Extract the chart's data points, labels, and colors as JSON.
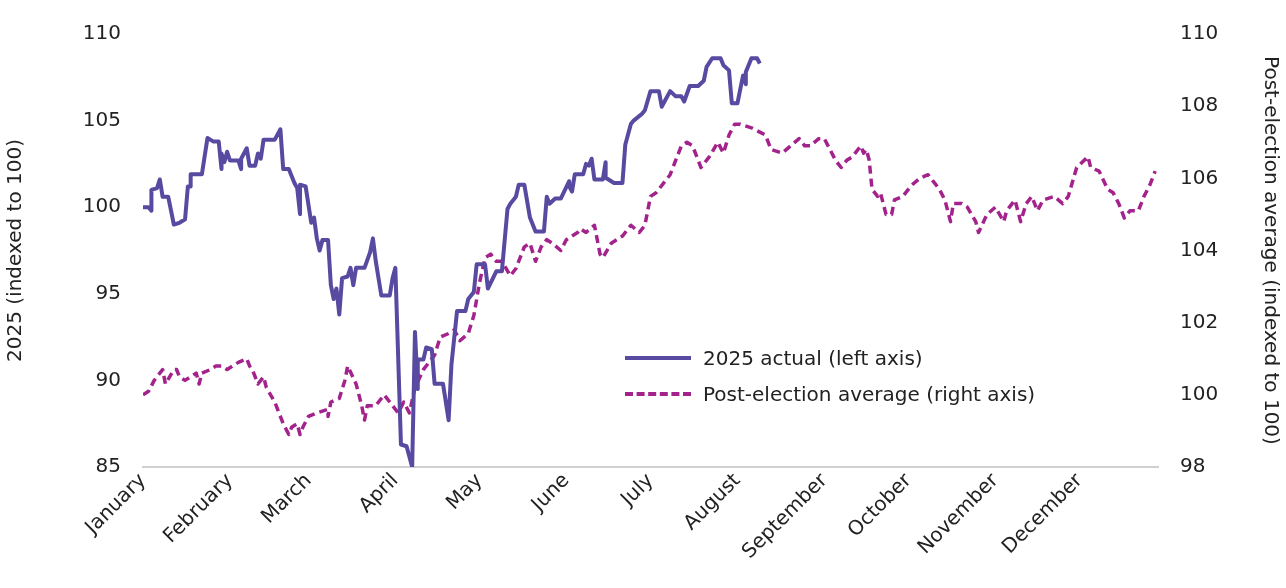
{
  "chart_data": {
    "type": "line",
    "ylabel": "2025 (indexed to 100)",
    "y2label": "Post-election average (indexed to 100)",
    "xlim": [
      "--01-01",
      "--12-29"
    ],
    "xticks": [
      {
        "value": "--01-01",
        "label": "January"
      },
      {
        "value": "--02-01",
        "label": "February"
      },
      {
        "value": "--03-01",
        "label": "March"
      },
      {
        "value": "--04-01",
        "label": "April"
      },
      {
        "value": "--05-01",
        "label": "May"
      },
      {
        "value": "--06-01",
        "label": "June"
      },
      {
        "value": "--07-01",
        "label": "July"
      },
      {
        "value": "--08-01",
        "label": "August"
      },
      {
        "value": "--09-01",
        "label": "September"
      },
      {
        "value": "--10-01",
        "label": "October"
      },
      {
        "value": "--11-01",
        "label": "November"
      },
      {
        "value": "--12-01",
        "label": "December"
      }
    ],
    "ylim": [
      85,
      110
    ],
    "yticks": [
      85,
      90,
      95,
      100,
      105,
      110
    ],
    "y2lim": [
      98,
      110
    ],
    "y2ticks": [
      98,
      100,
      102,
      104,
      106,
      108,
      110
    ],
    "grid": false,
    "legend": "bottom right",
    "marker": "none",
    "series": [
      {
        "name": "2025 actual (left axis)",
        "color": "#574aa0",
        "line_style": "solid",
        "axis": "y",
        "x": [
          "--01-01",
          "--01-03",
          "--01-04",
          "--01-04",
          "--01-06",
          "--01-07",
          "--01-08",
          "--01-10",
          "--01-12",
          "--01-14",
          "--01-16",
          "--01-17",
          "--01-18",
          "--01-18",
          "--01-22",
          "--01-24",
          "--01-26",
          "--01-28",
          "--01-29",
          "--01-29",
          "--01-30",
          "--01-31",
          "--02-01",
          "--02-04",
          "--02-05",
          "--02-05",
          "--02-07",
          "--02-08",
          "--02-10",
          "--02-11",
          "--02-12",
          "--02-13",
          "--02-17",
          "--02-19",
          "--02-20",
          "--02-22",
          "--02-24",
          "--02-25",
          "--02-26",
          "--02-26",
          "--02-28",
          "--03-02",
          "--03-03",
          "--03-04",
          "--03-05",
          "--03-06",
          "--03-08",
          "--03-09",
          "--03-10",
          "--03-11",
          "--03-12",
          "--03-13",
          "--03-15",
          "--03-16",
          "--03-17",
          "--03-18",
          "--03-21",
          "--03-23",
          "--03-24",
          "--03-25",
          "--03-27",
          "--03-30",
          "--03-31",
          "--04-01",
          "--04-03",
          "--04-05",
          "--04-07",
          "--04-08",
          "--04-09",
          "--04-09",
          "--04-11",
          "--04-12",
          "--04-14",
          "--04-15",
          "--04-18",
          "--04-20",
          "--04-21",
          "--04-23",
          "--04-26",
          "--04-27",
          "--04-29",
          "--04-30",
          "--05-03",
          "--05-04",
          "--05-07",
          "--05-09",
          "--05-11",
          "--05-12",
          "--05-14",
          "--05-15",
          "--05-17",
          "--05-19",
          "--05-21",
          "--05-24",
          "--05-25",
          "--05-26",
          "--05-28",
          "--05-30",
          "--06-02",
          "--06-02",
          "--06-03",
          "--06-04",
          "--06-07",
          "--06-08",
          "--06-09",
          "--06-10",
          "--06-11",
          "--06-14",
          "--06-15",
          "--06-15",
          "--06-18",
          "--06-21",
          "--06-22",
          "--06-24",
          "--06-25",
          "--06-28",
          "--06-29",
          "--07-01",
          "--07-04",
          "--07-05",
          "--07-08",
          "--07-10",
          "--07-12",
          "--07-13",
          "--07-15",
          "--07-18",
          "--07-20",
          "--07-21",
          "--07-23",
          "--07-26",
          "--07-27",
          "--07-29",
          "--07-30",
          "--08-01",
          "--08-03",
          "--08-04",
          "--08-04",
          "--08-06",
          "--08-08",
          "--08-09"
        ],
        "values": [
          100.0,
          100.0,
          99.8,
          101.0,
          101.1,
          101.6,
          100.6,
          100.6,
          99.0,
          99.1,
          99.3,
          101.2,
          101.2,
          101.9,
          101.9,
          104.0,
          103.8,
          103.8,
          102.2,
          103.1,
          102.6,
          103.2,
          102.7,
          102.7,
          102.2,
          102.8,
          103.4,
          102.4,
          102.4,
          103.1,
          102.8,
          103.9,
          103.9,
          104.5,
          102.2,
          102.2,
          101.4,
          101.1,
          99.6,
          101.3,
          101.2,
          99.1,
          99.4,
          98.2,
          97.5,
          98.1,
          98.1,
          95.5,
          94.7,
          95.3,
          93.8,
          95.9,
          96.0,
          96.5,
          95.5,
          96.5,
          96.5,
          97.4,
          98.2,
          96.9,
          94.9,
          94.9,
          95.9,
          96.5,
          86.3,
          86.2,
          85.0,
          92.8,
          89.5,
          91.2,
          91.2,
          91.9,
          91.8,
          89.8,
          89.8,
          87.7,
          90.9,
          94.0,
          94.0,
          94.7,
          95.1,
          96.7,
          96.7,
          95.3,
          96.3,
          96.3,
          99.9,
          100.2,
          100.6,
          101.3,
          101.3,
          99.4,
          98.6,
          98.6,
          100.6,
          100.2,
          100.5,
          100.5,
          101.5,
          101.2,
          100.9,
          101.9,
          101.9,
          102.5,
          102.4,
          102.8,
          101.6,
          101.6,
          102.6,
          101.7,
          101.4,
          101.4,
          103.6,
          104.8,
          105.0,
          105.4,
          105.6,
          106.7,
          106.7,
          105.8,
          106.7,
          106.4,
          106.4,
          106.1,
          107.0,
          107.0,
          107.3,
          108.1,
          108.6,
          108.6,
          108.2,
          107.9,
          106.0,
          106.0,
          107.6,
          107.1,
          107.8,
          108.6,
          108.6,
          108.3
        ]
      },
      {
        "name": "Post-election average (right axis)",
        "color": "#a3228c",
        "line_style": "dashed",
        "axis": "y2",
        "x": [
          "--01-01",
          "--01-03",
          "--01-05",
          "--01-07",
          "--01-08",
          "--01-09",
          "--01-12",
          "--01-13",
          "--01-14",
          "--01-16",
          "--01-18",
          "--01-20",
          "--01-21",
          "--01-22",
          "--01-25",
          "--01-27",
          "--01-29",
          "--01-31",
          "--02-02",
          "--02-04",
          "--02-07",
          "--02-08",
          "--02-09",
          "--02-11",
          "--02-13",
          "--02-14",
          "--02-17",
          "--02-20",
          "--02-22",
          "--02-23",
          "--02-25",
          "--02-26",
          "--02-27",
          "--03-01",
          "--03-04",
          "--03-08",
          "--03-08",
          "--03-09",
          "--03-12",
          "--03-14",
          "--03-15",
          "--03-18",
          "--03-20",
          "--03-21",
          "--03-22",
          "--03-25",
          "--03-28",
          "--03-30",
          "--04-02",
          "--04-04",
          "--04-06",
          "--04-08",
          "--04-11",
          "--04-15",
          "--04-17",
          "--04-20",
          "--04-22",
          "--04-24",
          "--04-27",
          "--04-29",
          "--05-01",
          "--05-03",
          "--05-05",
          "--05-07",
          "--05-09",
          "--05-12",
          "--05-14",
          "--05-17",
          "--05-19",
          "--05-21",
          "--05-23",
          "--05-25",
          "--05-27",
          "--05-30",
          "--06-01",
          "--06-05",
          "--06-06",
          "--06-08",
          "--06-11",
          "--06-13",
          "--06-14",
          "--06-17",
          "--06-19",
          "--06-21",
          "--06-24",
          "--06-27",
          "--06-29",
          "--07-01",
          "--07-03",
          "--07-08",
          "--07-09",
          "--07-12",
          "--07-14",
          "--07-16",
          "--07-19",
          "--07-22",
          "--07-25",
          "--07-27",
          "--07-29",
          "--07-31",
          "--08-02",
          "--08-06",
          "--08-11",
          "--08-13",
          "--08-17",
          "--08-20",
          "--08-23",
          "--08-25",
          "--08-27",
          "--08-30",
          "--09-01",
          "--09-03",
          "--09-05",
          "--09-07",
          "--09-09",
          "--09-11",
          "--09-14",
          "--09-15",
          "--09-16",
          "--09-17",
          "--09-18",
          "--09-20",
          "--09-21",
          "--09-23",
          "--09-25",
          "--09-26",
          "--09-29",
          "--10-02",
          "--10-05",
          "--10-08",
          "--10-10",
          "--10-12",
          "--10-14",
          "--10-16",
          "--10-17",
          "--10-20",
          "--10-22",
          "--10-25",
          "--10-26",
          "--10-29",
          "--11-01",
          "--11-04",
          "--11-05",
          "--11-08",
          "--11-10",
          "--11-12",
          "--11-14",
          "--11-16",
          "--11-18",
          "--11-22",
          "--11-25",
          "--11-27",
          "--11-30",
          "--12-04",
          "--12-05",
          "--12-08",
          "--12-11",
          "--12-13",
          "--12-15",
          "--12-17",
          "--12-19",
          "--12-22",
          "--12-24",
          "--12-26",
          "--12-28"
        ],
        "values": [
          100.0,
          100.1,
          100.4,
          100.6,
          100.7,
          100.3,
          100.7,
          100.7,
          100.5,
          100.4,
          100.5,
          100.6,
          100.3,
          100.6,
          100.7,
          100.8,
          100.8,
          100.7,
          100.8,
          100.9,
          101.0,
          100.8,
          100.7,
          100.3,
          100.5,
          100.2,
          99.8,
          99.2,
          98.9,
          99.1,
          99.2,
          98.9,
          99.1,
          99.4,
          99.5,
          99.6,
          99.4,
          99.8,
          99.9,
          100.4,
          100.8,
          100.3,
          99.7,
          99.3,
          99.7,
          99.7,
          100.0,
          99.8,
          99.5,
          99.8,
          99.5,
          100.2,
          100.7,
          101.1,
          101.6,
          101.7,
          101.8,
          101.5,
          101.7,
          102.2,
          103.1,
          103.8,
          103.9,
          103.7,
          103.7,
          103.3,
          103.5,
          104.1,
          104.2,
          103.7,
          104.1,
          104.3,
          104.2,
          104.0,
          104.3,
          104.5,
          104.6,
          104.5,
          104.7,
          103.9,
          103.8,
          104.2,
          104.3,
          104.4,
          104.7,
          104.5,
          104.7,
          105.5,
          105.6,
          106.1,
          106.3,
          106.9,
          107.0,
          106.9,
          106.3,
          106.6,
          107.0,
          106.7,
          107.2,
          107.5,
          107.5,
          107.4,
          107.2,
          106.8,
          106.7,
          106.9,
          107.1,
          106.9,
          106.9,
          107.1,
          107.1,
          106.8,
          106.5,
          106.3,
          106.5,
          106.6,
          106.9,
          106.7,
          106.8,
          106.5,
          105.7,
          105.5,
          105.6,
          105.0,
          105.0,
          105.4,
          105.5,
          105.8,
          106.0,
          106.1,
          105.9,
          105.7,
          105.4,
          104.8,
          105.3,
          105.3,
          105.2,
          104.8,
          104.5,
          105.0,
          105.2,
          104.8,
          105.1,
          105.4,
          104.8,
          105.3,
          105.5,
          105.1,
          105.4,
          105.5,
          105.3,
          105.5,
          106.3,
          106.6,
          106.3,
          106.2,
          105.7,
          105.6,
          105.3,
          104.9,
          105.1,
          105.1,
          105.5,
          105.8,
          106.2
        ]
      }
    ]
  }
}
